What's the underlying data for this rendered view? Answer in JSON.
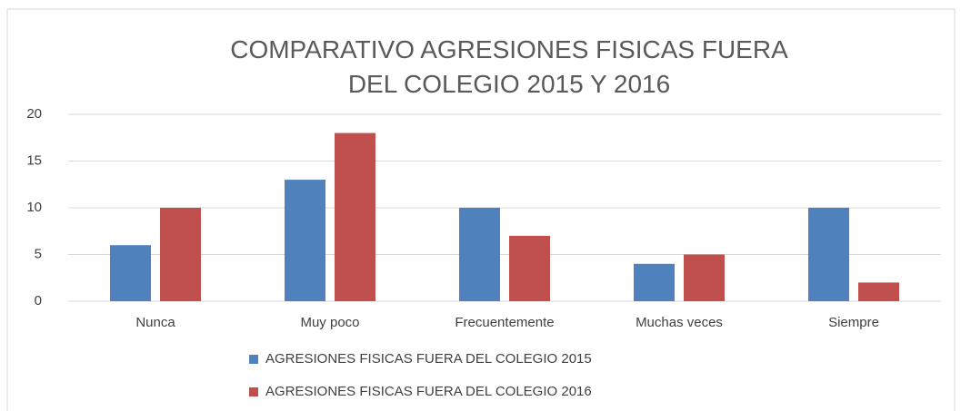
{
  "chart_data": {
    "type": "bar",
    "title": "COMPARATIVO AGRESIONES FISICAS FUERA DEL COLEGIO 2015 Y 2016",
    "categories": [
      "Nunca",
      "Muy poco",
      "Frecuentemente",
      "Muchas veces",
      "Siempre"
    ],
    "series": [
      {
        "name": "AGRESIONES FISICAS FUERA DEL COLEGIO 2015",
        "color": "#4f81bd",
        "values": [
          6,
          13,
          10,
          4,
          10
        ]
      },
      {
        "name": "AGRESIONES FISICAS FUERA DEL COLEGIO 2016",
        "color": "#c0504d",
        "values": [
          10,
          18,
          7,
          5,
          2
        ]
      }
    ],
    "ylim": [
      0,
      20
    ],
    "yticks": [
      0,
      5,
      10,
      15,
      20
    ],
    "grid": true,
    "legend": "bottom"
  }
}
